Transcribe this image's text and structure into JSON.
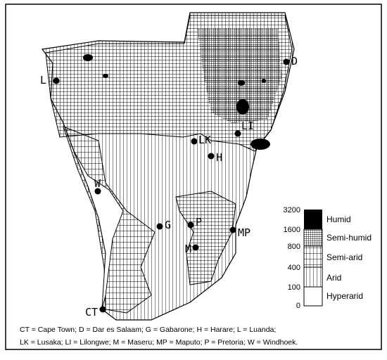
{
  "cities": [
    {
      "code": "L"
    },
    {
      "code": "D"
    },
    {
      "code": "LI"
    },
    {
      "code": "LK"
    },
    {
      "code": "H"
    },
    {
      "code": "W"
    },
    {
      "code": "G"
    },
    {
      "code": "P"
    },
    {
      "code": "M"
    },
    {
      "code": "MP"
    },
    {
      "code": "CT"
    }
  ],
  "legend": {
    "thresholds": [
      3200,
      1600,
      800,
      400,
      100,
      0
    ],
    "classes": [
      "Humid",
      "Semi-humid",
      "Semi-arid",
      "Arid",
      "Hyperarid"
    ]
  },
  "caption": [
    "CT = Cape Town; D = Dar es Salaam; G = Gabarone; H = Harare; L = Luanda;",
    "LK = Lusaka; LI = Lilongwe; M = Maseru; MP = Maputo; P = Pretoria; W = Windhoek."
  ]
}
